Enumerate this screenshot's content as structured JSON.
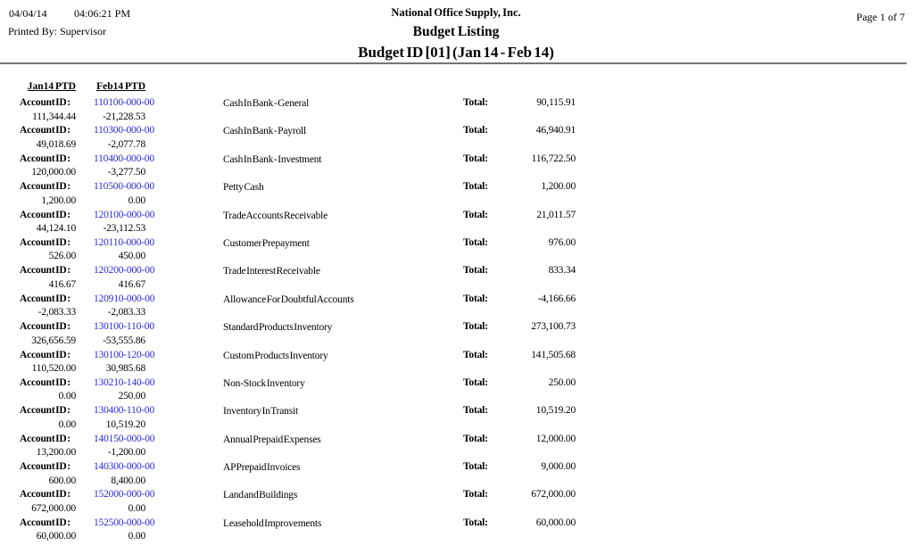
{
  "header": {
    "date": "04/04/14",
    "time": "04:06:21 PM",
    "printed_by": "Printed By: Supervisor",
    "company": "National Office Supply, Inc.",
    "report_title": "Budget Listing",
    "budget_line": "Budget ID [01] (Jan 14 - Feb 14)",
    "page": "Page 1 of 7"
  },
  "columns": {
    "jan_header": "Jan14 PTD",
    "feb_header": "Feb14 PTD"
  },
  "labels": {
    "account_id": "Account ID :",
    "total": "Total:"
  },
  "colors": {
    "account_id_link": "#2a2ad0",
    "divider": "#757575"
  },
  "rows": [
    {
      "account_id": "110100-000-00",
      "description": "Cash In Bank - General",
      "jan": "111,344.44",
      "feb": "-21,228.53",
      "total": "90,115.91"
    },
    {
      "account_id": "110300-000-00",
      "description": "Cash In Bank - Payroll",
      "jan": "49,018.69",
      "feb": "-2,077.78",
      "total": "46,940.91"
    },
    {
      "account_id": "110400-000-00",
      "description": "Cash In Bank - Investment",
      "jan": "120,000.00",
      "feb": "-3,277.50",
      "total": "116,722.50"
    },
    {
      "account_id": "110500-000-00",
      "description": "Petty Cash",
      "jan": "1,200.00",
      "feb": "0.00",
      "total": "1,200.00"
    },
    {
      "account_id": "120100-000-00",
      "description": "Trade Accounts Receivable",
      "jan": "44,124.10",
      "feb": "-23,112.53",
      "total": "21,011.57"
    },
    {
      "account_id": "120110-000-00",
      "description": "Customer Prepayment",
      "jan": "526.00",
      "feb": "450.00",
      "total": "976.00"
    },
    {
      "account_id": "120200-000-00",
      "description": "Trade Interest Receivable",
      "jan": "416.67",
      "feb": "416.67",
      "total": "833.34"
    },
    {
      "account_id": "120910-000-00",
      "description": "Allowance For Doubtful Accounts",
      "jan": "-2,083.33",
      "feb": "-2,083.33",
      "total": "-4,166.66"
    },
    {
      "account_id": "130100-110-00",
      "description": "Standard Products Inventory",
      "jan": "326,656.59",
      "feb": "-53,555.86",
      "total": "273,100.73"
    },
    {
      "account_id": "130100-120-00",
      "description": "Custom Products Inventory",
      "jan": "110,520.00",
      "feb": "30,985.68",
      "total": "141,505.68"
    },
    {
      "account_id": "130210-140-00",
      "description": "Non-Stock Inventory",
      "jan": "0.00",
      "feb": "250.00",
      "total": "250.00"
    },
    {
      "account_id": "130400-110-00",
      "description": "Inventory In Transit",
      "jan": "0.00",
      "feb": "10,519.20",
      "total": "10,519.20"
    },
    {
      "account_id": "140150-000-00",
      "description": "Annual Prepaid Expenses",
      "jan": "13,200.00",
      "feb": "-1,200.00",
      "total": "12,000.00"
    },
    {
      "account_id": "140300-000-00",
      "description": "AP Prepaid Invoices",
      "jan": "600.00",
      "feb": "8,400.00",
      "total": "9,000.00"
    },
    {
      "account_id": "152000-000-00",
      "description": "Land and Buildings",
      "jan": "672,000.00",
      "feb": "0.00",
      "total": "672,000.00"
    },
    {
      "account_id": "152500-000-00",
      "description": "Leasehold Improvements",
      "jan": "60,000.00",
      "feb": "0.00",
      "total": "60,000.00"
    }
  ]
}
